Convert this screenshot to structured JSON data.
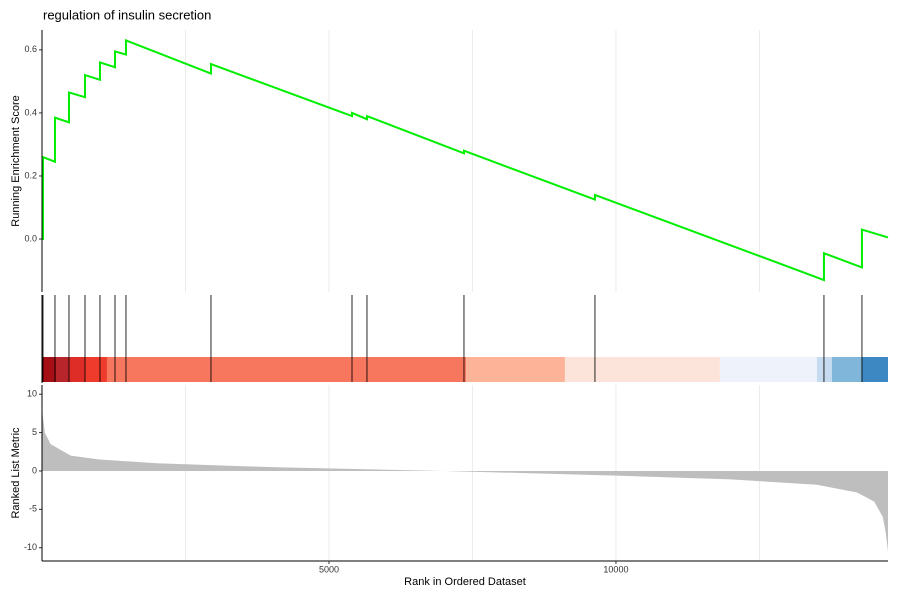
{
  "chart_data": {
    "type": "gsea",
    "title": "regulation of insulin secretion",
    "xlabel": "Rank in Ordered Dataset",
    "xlim": [
      0,
      14740
    ],
    "xticks": [
      5000,
      10000
    ],
    "xgrid_minor": [
      2500,
      7500,
      12500
    ],
    "es": {
      "ylabel": "Running Enrichment Score",
      "color": "#00ee00",
      "ylim": [
        -0.168,
        0.663
      ],
      "yticks": [
        {
          "value": 0,
          "label": "0.0"
        },
        0.2,
        0.4,
        0.6
      ],
      "x": [
        0,
        17,
        17,
        226,
        226,
        470,
        470,
        749,
        749,
        1010,
        1010,
        1272,
        1272,
        1463,
        1463,
        2944,
        2944,
        5401,
        5401,
        5662,
        5662,
        7352,
        7352,
        9634,
        9634,
        13624,
        13624,
        14286,
        14286,
        14740
      ],
      "values": [
        0,
        0,
        0.26,
        0.245,
        0.385,
        0.37,
        0.465,
        0.45,
        0.52,
        0.505,
        0.56,
        0.545,
        0.595,
        0.585,
        0.63,
        0.525,
        0.555,
        0.39,
        0.4,
        0.38,
        0.39,
        0.272,
        0.28,
        0.125,
        0.14,
        -0.13,
        -0.045,
        -0.09,
        0.03,
        0.005
      ]
    },
    "hits": [
      17,
      226,
      470,
      749,
      1010,
      1272,
      1463,
      2944,
      5401,
      5662,
      7352,
      9634,
      13624,
      14286
    ],
    "band": {
      "edges": [
        0,
        244,
        470,
        749,
        1132,
        7387,
        9111,
        11812,
        13502,
        13763,
        14286,
        14740
      ],
      "colors": [
        "#a50f15",
        "#b8262b",
        "#de2d26",
        "#ef3b2c",
        "#f7765e",
        "#fcb398",
        "#fde4da",
        "#eef3fb",
        "#c6dbef",
        "#7fb6d9",
        "#3d88c2"
      ]
    },
    "metric": {
      "ylabel": "Ranked List Metric",
      "color": "#bebebe",
      "ylim": [
        -11.6,
        11.2
      ],
      "yticks": [
        10,
        5,
        0,
        -5,
        -10
      ],
      "x": [
        0,
        50,
        150,
        500,
        1000,
        2000,
        4000,
        7000,
        10000,
        12000,
        13500,
        14200,
        14500,
        14650,
        14700,
        14740
      ],
      "values": [
        8,
        5,
        3.5,
        2,
        1.5,
        1.0,
        0.5,
        0,
        -0.6,
        -1.1,
        -1.8,
        -2.8,
        -4,
        -6,
        -8,
        -10.5
      ]
    }
  }
}
